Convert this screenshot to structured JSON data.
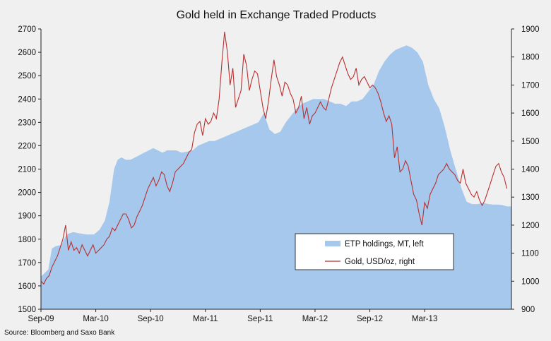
{
  "chart_data": {
    "type": "area",
    "title": "Gold held in Exchange Traded Products",
    "source": "Source: Bloomberg and Saxo Bank",
    "xlabel": "",
    "ylabel_left": "",
    "ylabel_right": "",
    "x_range": [
      0,
      51.5
    ],
    "x_ticks": [
      {
        "pos": 0,
        "label": "Sep-09"
      },
      {
        "pos": 6,
        "label": "Mar-10"
      },
      {
        "pos": 12,
        "label": "Sep-10"
      },
      {
        "pos": 18,
        "label": "Mar-11"
      },
      {
        "pos": 24,
        "label": "Sep-11"
      },
      {
        "pos": 30,
        "label": "Mar-12"
      },
      {
        "pos": 36,
        "label": "Sep-12"
      },
      {
        "pos": 42,
        "label": "Mar-13"
      }
    ],
    "y_left": {
      "min": 1500,
      "max": 2700,
      "ticks": [
        1500,
        1600,
        1700,
        1800,
        1900,
        2000,
        2100,
        2200,
        2300,
        2400,
        2500,
        2600,
        2700
      ]
    },
    "y_right": {
      "min": 900,
      "max": 1900,
      "ticks": [
        900,
        1000,
        1100,
        1200,
        1300,
        1400,
        1500,
        1600,
        1700,
        1800,
        1900
      ]
    },
    "series": [
      {
        "name": "ETP holdings, MT, left",
        "axis": "left",
        "color": "#a5c8ec",
        "x": [
          0,
          0.4,
          0.8,
          1.2,
          1.6,
          2.2,
          2.8,
          3.5,
          4.2,
          5,
          5.8,
          6.4,
          7,
          7.5,
          8,
          8.4,
          8.8,
          9.3,
          9.8,
          10.3,
          10.8,
          11.3,
          11.8,
          12.3,
          12.8,
          13.3,
          13.8,
          14.3,
          14.8,
          15.4,
          16,
          16.6,
          17.2,
          17.8,
          18.4,
          19,
          19.6,
          20.2,
          20.8,
          21.4,
          22,
          22.6,
          23.2,
          23.8,
          24.4,
          25,
          25.6,
          26.2,
          26.8,
          27.4,
          28,
          28.6,
          29.2,
          29.8,
          30.4,
          31,
          31.6,
          32.2,
          32.8,
          33.4,
          34,
          34.6,
          35.2,
          35.8,
          36.4,
          37,
          37.6,
          38.2,
          38.8,
          39.4,
          40,
          40.6,
          41.2,
          41.8,
          42.4,
          43,
          43.6,
          44.2,
          44.8,
          45.4,
          46,
          46.6,
          47.2,
          47.8,
          48.4,
          49,
          49.5,
          50,
          50.5,
          51,
          51.5
        ],
        "values": [
          1640,
          1655,
          1670,
          1760,
          1770,
          1775,
          1820,
          1830,
          1825,
          1820,
          1820,
          1840,
          1880,
          1960,
          2100,
          2140,
          2150,
          2140,
          2140,
          2150,
          2160,
          2170,
          2180,
          2190,
          2180,
          2170,
          2180,
          2180,
          2180,
          2170,
          2175,
          2180,
          2200,
          2210,
          2220,
          2220,
          2230,
          2240,
          2250,
          2260,
          2270,
          2280,
          2290,
          2300,
          2340,
          2270,
          2250,
          2260,
          2300,
          2330,
          2360,
          2380,
          2390,
          2400,
          2400,
          2400,
          2390,
          2380,
          2380,
          2370,
          2390,
          2390,
          2400,
          2430,
          2460,
          2520,
          2560,
          2590,
          2610,
          2620,
          2630,
          2620,
          2600,
          2560,
          2460,
          2400,
          2360,
          2280,
          2180,
          2100,
          2020,
          1960,
          1950,
          1950,
          1955,
          1950,
          1948,
          1948,
          1946,
          1940,
          1940
        ]
      },
      {
        "name": "Gold, USD/oz, right",
        "axis": "right",
        "color": "#b83030",
        "x": [
          0,
          0.3,
          0.6,
          0.9,
          1.2,
          1.5,
          1.8,
          2.1,
          2.4,
          2.7,
          3,
          3.3,
          3.6,
          3.9,
          4.2,
          4.5,
          4.8,
          5.1,
          5.4,
          5.7,
          6,
          6.3,
          6.6,
          6.9,
          7.2,
          7.5,
          7.8,
          8.1,
          8.4,
          8.7,
          9,
          9.3,
          9.6,
          9.9,
          10.2,
          10.5,
          10.8,
          11.1,
          11.4,
          11.7,
          12,
          12.3,
          12.6,
          12.9,
          13.2,
          13.5,
          13.8,
          14.1,
          14.4,
          14.7,
          15,
          15.3,
          15.6,
          15.9,
          16.2,
          16.5,
          16.8,
          17.1,
          17.4,
          17.7,
          18,
          18.3,
          18.6,
          18.9,
          19.2,
          19.5,
          19.8,
          20.1,
          20.4,
          20.7,
          21,
          21.3,
          21.6,
          21.9,
          22.2,
          22.5,
          22.8,
          23.1,
          23.4,
          23.7,
          24,
          24.3,
          24.6,
          24.9,
          25.2,
          25.5,
          25.8,
          26.1,
          26.4,
          26.7,
          27,
          27.3,
          27.6,
          27.9,
          28.2,
          28.5,
          28.8,
          29.1,
          29.4,
          29.7,
          30,
          30.3,
          30.6,
          30.9,
          31.2,
          31.5,
          31.8,
          32.1,
          32.4,
          32.7,
          33,
          33.3,
          33.6,
          33.9,
          34.2,
          34.5,
          34.8,
          35.1,
          35.4,
          35.7,
          36,
          36.3,
          36.6,
          36.9,
          37.2,
          37.5,
          37.8,
          38.1,
          38.4,
          38.7,
          39,
          39.3,
          39.6,
          39.9,
          40.2,
          40.5,
          40.8,
          41.1,
          41.4,
          41.7,
          42,
          42.3,
          42.6,
          42.9,
          43.2,
          43.5,
          43.8,
          44.1,
          44.4,
          44.7,
          45,
          45.3,
          45.6,
          45.9,
          46.2,
          46.5,
          46.8,
          47.1,
          47.4,
          47.7,
          48,
          48.3,
          48.6,
          48.9,
          49.2,
          49.5,
          49.8,
          50.1,
          50.4,
          50.7,
          51
        ],
        "values": [
          1000,
          990,
          1010,
          1020,
          1050,
          1070,
          1090,
          1120,
          1150,
          1200,
          1110,
          1140,
          1110,
          1120,
          1100,
          1130,
          1110,
          1090,
          1110,
          1130,
          1100,
          1110,
          1120,
          1130,
          1150,
          1160,
          1190,
          1180,
          1200,
          1220,
          1240,
          1240,
          1220,
          1190,
          1200,
          1230,
          1250,
          1270,
          1300,
          1330,
          1350,
          1370,
          1340,
          1360,
          1390,
          1380,
          1340,
          1320,
          1350,
          1390,
          1400,
          1410,
          1420,
          1440,
          1460,
          1470,
          1530,
          1560,
          1570,
          1520,
          1580,
          1560,
          1570,
          1600,
          1580,
          1650,
          1780,
          1890,
          1820,
          1700,
          1760,
          1620,
          1650,
          1680,
          1810,
          1770,
          1680,
          1720,
          1750,
          1740,
          1680,
          1620,
          1580,
          1640,
          1720,
          1790,
          1730,
          1700,
          1660,
          1710,
          1700,
          1670,
          1650,
          1600,
          1620,
          1660,
          1580,
          1620,
          1560,
          1590,
          1600,
          1620,
          1640,
          1620,
          1610,
          1650,
          1690,
          1720,
          1750,
          1780,
          1800,
          1770,
          1740,
          1720,
          1730,
          1760,
          1700,
          1720,
          1730,
          1710,
          1690,
          1700,
          1690,
          1670,
          1640,
          1600,
          1570,
          1590,
          1560,
          1440,
          1480,
          1390,
          1400,
          1430,
          1410,
          1360,
          1310,
          1290,
          1240,
          1200,
          1280,
          1260,
          1310,
          1330,
          1350,
          1380,
          1390,
          1400,
          1420,
          1400,
          1390,
          1380,
          1360,
          1350,
          1400,
          1350,
          1330,
          1310,
          1300,
          1320,
          1290,
          1270,
          1290,
          1320,
          1350,
          1380,
          1410,
          1420,
          1390,
          1370,
          1330
        ],
        "line_x_offset_note": "gold series begins near Sep-09 and ends just before right border"
      }
    ],
    "legend": {
      "placement": "bottom-right",
      "items": [
        {
          "label": "ETP holdings, MT, left"
        },
        {
          "label": "Gold, USD/oz, right"
        }
      ]
    },
    "grid": false
  }
}
